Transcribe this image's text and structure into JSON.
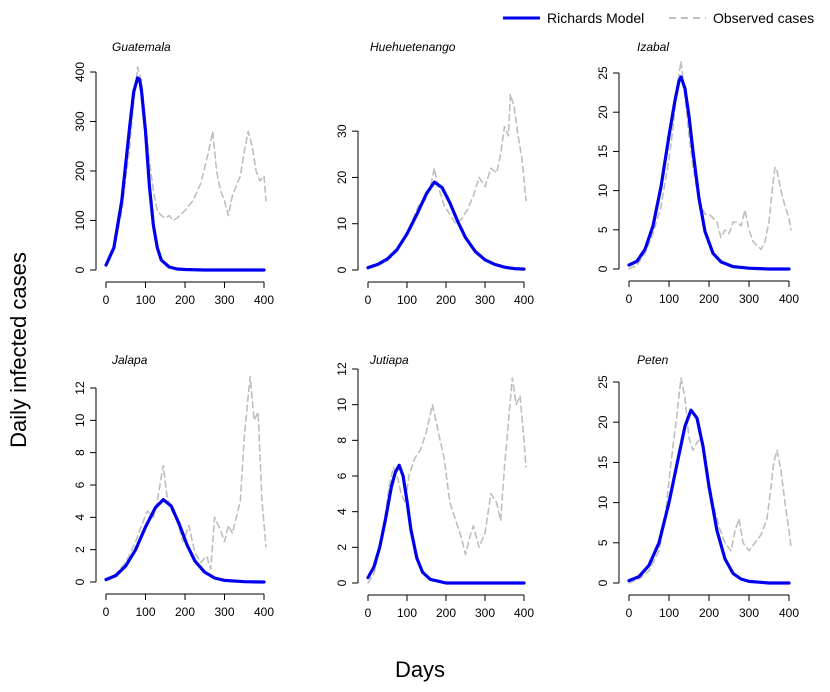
{
  "figure": {
    "xlabel": "Days",
    "ylabel": "Daily infected cases",
    "legend": {
      "placement": "top-right",
      "entries": [
        {
          "label": "Richards Model",
          "color": "#0000ee",
          "style": "solid"
        },
        {
          "label": "Observed cases",
          "color": "#bebebe",
          "style": "dashed"
        }
      ]
    }
  },
  "chart_data": [
    {
      "type": "line",
      "title": "Guatemala",
      "xlim": [
        0,
        405
      ],
      "ylim": [
        0,
        400
      ],
      "xticks": [
        0,
        100,
        200,
        300,
        400
      ],
      "yticks": [
        0,
        100,
        200,
        300,
        400
      ],
      "series": [
        {
          "name": "Richards Model",
          "color": "#0000ee",
          "x": [
            0,
            20,
            40,
            60,
            70,
            80,
            85,
            90,
            100,
            110,
            120,
            130,
            140,
            160,
            180,
            200,
            250,
            300,
            350,
            400
          ],
          "y": [
            10,
            45,
            140,
            290,
            360,
            388,
            385,
            360,
            280,
            170,
            90,
            45,
            20,
            6,
            2,
            1,
            0,
            0,
            0,
            0
          ]
        },
        {
          "name": "Observed cases",
          "color": "#bebebe",
          "x": [
            0,
            20,
            40,
            60,
            70,
            80,
            90,
            100,
            110,
            120,
            130,
            140,
            150,
            160,
            170,
            180,
            200,
            220,
            240,
            260,
            270,
            280,
            290,
            300,
            310,
            320,
            340,
            350,
            360,
            370,
            380,
            390,
            400,
            405
          ],
          "y": [
            10,
            40,
            120,
            250,
            340,
            410,
            380,
            300,
            220,
            160,
            120,
            110,
            105,
            110,
            100,
            105,
            120,
            140,
            175,
            240,
            280,
            200,
            160,
            140,
            110,
            150,
            190,
            240,
            280,
            250,
            200,
            180,
            190,
            140
          ]
        }
      ]
    },
    {
      "type": "line",
      "title": "Huehuetenango",
      "xlim": [
        0,
        405
      ],
      "ylim": [
        0,
        35
      ],
      "xticks": [
        0,
        100,
        200,
        300,
        400
      ],
      "yticks": [
        0,
        10,
        20,
        30
      ],
      "series": [
        {
          "name": "Richards Model",
          "color": "#0000ee",
          "x": [
            0,
            25,
            50,
            75,
            100,
            125,
            150,
            170,
            190,
            210,
            230,
            250,
            275,
            300,
            325,
            350,
            375,
            400
          ],
          "y": [
            0.5,
            1.2,
            2.4,
            4.5,
            7.8,
            12.0,
            16.5,
            19.0,
            17.8,
            14.5,
            10.5,
            7.0,
            4.0,
            2.2,
            1.2,
            0.6,
            0.3,
            0.2
          ]
        },
        {
          "name": "Observed cases",
          "color": "#bebebe",
          "x": [
            0,
            25,
            50,
            75,
            100,
            115,
            130,
            145,
            160,
            170,
            180,
            195,
            210,
            225,
            240,
            255,
            270,
            285,
            300,
            315,
            330,
            340,
            350,
            360,
            365,
            375,
            385,
            395,
            405
          ],
          "y": [
            0.5,
            1.0,
            2.0,
            4.0,
            8.0,
            11.0,
            14.0,
            15.0,
            18.0,
            22.0,
            18.0,
            14.0,
            12.0,
            10.0,
            11.0,
            13.0,
            16.0,
            20.0,
            18.0,
            22.0,
            21.0,
            25.0,
            31.0,
            29.0,
            38.0,
            35.0,
            29.0,
            24.0,
            15.0
          ]
        }
      ]
    },
    {
      "type": "line",
      "title": "Izabal",
      "xlim": [
        0,
        405
      ],
      "ylim": [
        0,
        25
      ],
      "xticks": [
        0,
        100,
        200,
        300,
        400
      ],
      "yticks": [
        0,
        5,
        10,
        15,
        20,
        25
      ],
      "series": [
        {
          "name": "Richards Model",
          "color": "#0000ee",
          "x": [
            0,
            20,
            40,
            60,
            80,
            100,
            115,
            125,
            130,
            140,
            150,
            160,
            175,
            190,
            210,
            230,
            260,
            300,
            350,
            400
          ],
          "y": [
            0.5,
            1.0,
            2.5,
            5.5,
            10.5,
            17.0,
            21.5,
            24.0,
            24.5,
            23.0,
            19.5,
            15.0,
            9.0,
            4.8,
            2.0,
            0.9,
            0.3,
            0.1,
            0.0,
            0.0
          ]
        },
        {
          "name": "Observed cases",
          "color": "#bebebe",
          "x": [
            0,
            20,
            40,
            60,
            80,
            100,
            110,
            120,
            130,
            140,
            150,
            160,
            170,
            180,
            190,
            200,
            210,
            220,
            230,
            240,
            250,
            260,
            270,
            280,
            290,
            300,
            310,
            320,
            330,
            340,
            350,
            360,
            365,
            370,
            380,
            390,
            400,
            405
          ],
          "y": [
            0.0,
            0.5,
            2.0,
            4.5,
            8.0,
            14.0,
            18.0,
            23.0,
            26.5,
            22.0,
            17.0,
            13.0,
            10.0,
            8.0,
            7.0,
            7.0,
            6.5,
            6.0,
            4.0,
            5.0,
            4.5,
            6.0,
            6.0,
            5.5,
            7.5,
            5.0,
            3.5,
            3.0,
            2.5,
            3.5,
            6.0,
            11.0,
            13.0,
            12.5,
            10.0,
            8.0,
            6.5,
            5.0
          ]
        }
      ]
    },
    {
      "type": "line",
      "title": "Jalapa",
      "xlim": [
        0,
        405
      ],
      "ylim": [
        0,
        12
      ],
      "xticks": [
        0,
        100,
        200,
        300,
        400
      ],
      "yticks": [
        0,
        2,
        4,
        6,
        8,
        10,
        12
      ],
      "series": [
        {
          "name": "Richards Model",
          "color": "#0000ee",
          "x": [
            0,
            25,
            50,
            75,
            100,
            125,
            145,
            165,
            185,
            205,
            225,
            250,
            275,
            300,
            350,
            400
          ],
          "y": [
            0.15,
            0.4,
            1.0,
            2.0,
            3.4,
            4.6,
            5.1,
            4.7,
            3.6,
            2.3,
            1.3,
            0.6,
            0.25,
            0.1,
            0.02,
            0.0
          ]
        },
        {
          "name": "Observed cases",
          "color": "#bebebe",
          "x": [
            0,
            25,
            50,
            75,
            90,
            105,
            120,
            130,
            140,
            145,
            155,
            165,
            180,
            195,
            210,
            225,
            240,
            255,
            265,
            275,
            290,
            300,
            310,
            320,
            330,
            340,
            350,
            360,
            365,
            375,
            385,
            395,
            405
          ],
          "y": [
            0.1,
            0.5,
            1.2,
            2.5,
            3.5,
            4.4,
            4.0,
            5.0,
            6.5,
            7.2,
            5.2,
            4.5,
            3.8,
            2.5,
            3.5,
            1.8,
            1.2,
            1.6,
            0.8,
            4.0,
            3.2,
            2.5,
            3.5,
            3.0,
            4.0,
            5.0,
            9.0,
            11.5,
            12.7,
            10.0,
            10.5,
            5.0,
            2.2
          ]
        }
      ]
    },
    {
      "type": "line",
      "title": "Jutiapa",
      "xlim": [
        0,
        405
      ],
      "ylim": [
        0,
        12
      ],
      "xticks": [
        0,
        100,
        200,
        300,
        400
      ],
      "yticks": [
        0,
        2,
        4,
        6,
        8,
        10,
        12
      ],
      "series": [
        {
          "name": "Richards Model",
          "color": "#0000ee",
          "x": [
            0,
            15,
            30,
            45,
            60,
            70,
            80,
            90,
            100,
            110,
            125,
            140,
            160,
            180,
            200,
            250,
            300,
            350,
            400
          ],
          "y": [
            0.3,
            0.9,
            2.0,
            3.6,
            5.4,
            6.2,
            6.6,
            6.0,
            4.6,
            3.0,
            1.4,
            0.6,
            0.2,
            0.1,
            0.0,
            0.0,
            0.0,
            0.0,
            0.0
          ]
        },
        {
          "name": "Observed cases",
          "color": "#bebebe",
          "x": [
            0,
            15,
            30,
            45,
            55,
            65,
            75,
            85,
            95,
            105,
            120,
            135,
            150,
            165,
            175,
            185,
            195,
            210,
            225,
            240,
            250,
            260,
            270,
            285,
            300,
            315,
            330,
            340,
            350,
            360,
            370,
            380,
            390,
            400,
            405
          ],
          "y": [
            0.0,
            0.5,
            2.0,
            4.0,
            5.5,
            6.5,
            6.0,
            5.0,
            4.5,
            6.0,
            7.0,
            7.5,
            8.5,
            10.0,
            9.0,
            8.0,
            7.0,
            4.5,
            3.5,
            2.5,
            1.6,
            2.5,
            3.2,
            2.0,
            2.8,
            5.0,
            4.5,
            3.5,
            6.5,
            9.0,
            11.5,
            10.0,
            10.5,
            8.0,
            6.5
          ]
        }
      ]
    },
    {
      "type": "line",
      "title": "Peten",
      "xlim": [
        0,
        405
      ],
      "ylim": [
        0,
        25
      ],
      "xticks": [
        0,
        100,
        200,
        300,
        400
      ],
      "yticks": [
        0,
        5,
        10,
        15,
        20,
        25
      ],
      "series": [
        {
          "name": "Richards Model",
          "color": "#0000ee",
          "x": [
            0,
            25,
            50,
            75,
            100,
            120,
            140,
            155,
            170,
            185,
            200,
            220,
            240,
            260,
            280,
            300,
            325,
            350,
            375,
            400
          ],
          "y": [
            0.3,
            0.8,
            2.2,
            5.0,
            10.0,
            14.8,
            19.5,
            21.5,
            20.5,
            17.0,
            12.0,
            6.5,
            3.0,
            1.2,
            0.5,
            0.2,
            0.1,
            0.0,
            0.0,
            0.0
          ]
        },
        {
          "name": "Observed cases",
          "color": "#bebebe",
          "x": [
            0,
            25,
            50,
            75,
            90,
            105,
            120,
            130,
            140,
            150,
            160,
            170,
            180,
            195,
            210,
            225,
            240,
            255,
            265,
            275,
            285,
            300,
            315,
            330,
            345,
            355,
            362,
            370,
            380,
            390,
            400,
            405
          ],
          "y": [
            0.0,
            0.5,
            1.5,
            4.0,
            8.0,
            15.0,
            21.0,
            25.5,
            23.0,
            18.0,
            16.5,
            17.5,
            18.0,
            14.0,
            10.0,
            7.0,
            5.0,
            4.0,
            6.5,
            8.0,
            5.0,
            4.0,
            5.0,
            6.0,
            8.0,
            12.0,
            15.0,
            16.5,
            14.0,
            10.0,
            6.5,
            4.5
          ]
        }
      ]
    }
  ]
}
